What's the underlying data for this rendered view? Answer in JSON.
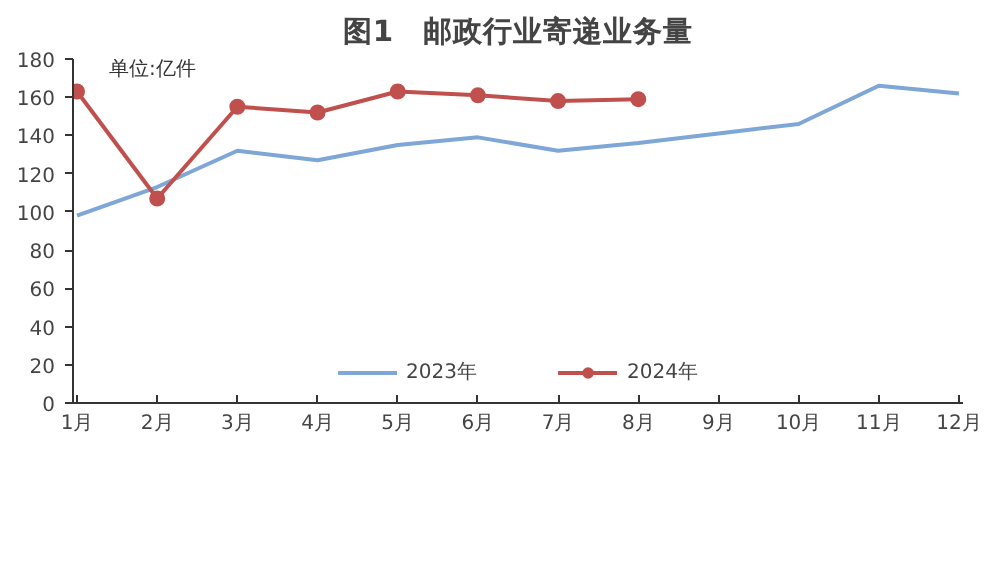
{
  "chart_data": {
    "type": "line",
    "title": "图1　邮政行业寄递业务量",
    "ylabel": "单位:亿件",
    "categories": [
      "1月",
      "2月",
      "3月",
      "4月",
      "5月",
      "6月",
      "7月",
      "8月",
      "9月",
      "10月",
      "11月",
      "12月"
    ],
    "series": [
      {
        "name": "2023年",
        "color": "#7ea6d6",
        "marker": "none",
        "values": [
          98,
          113,
          132,
          127,
          135,
          139,
          132,
          136,
          141,
          146,
          166,
          162
        ]
      },
      {
        "name": "2024年",
        "color": "#c0504d",
        "marker": "circle",
        "values": [
          163,
          107,
          155,
          152,
          163,
          161,
          158,
          159,
          null,
          null,
          null,
          null
        ]
      }
    ],
    "ylim": [
      0,
      180
    ],
    "yticks": [
      0,
      20,
      40,
      60,
      80,
      100,
      120,
      140,
      160,
      180
    ],
    "grid": false,
    "legend": "bottom"
  }
}
